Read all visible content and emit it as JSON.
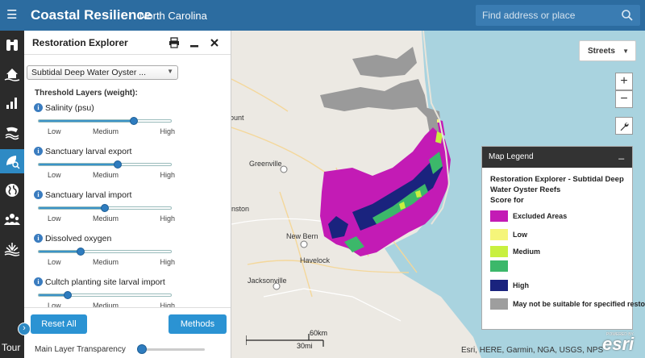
{
  "header": {
    "menu_icon": "☰",
    "title": "Coastal Resilience",
    "subtitle": "North Carolina",
    "search_placeholder": "Find address or place"
  },
  "rail": {
    "tour_label": "Tour",
    "collapse_icon": "›",
    "items": [
      {
        "icon": "binoculars-icon"
      },
      {
        "icon": "flood-house-icon"
      },
      {
        "icon": "bar-chart-icon"
      },
      {
        "icon": "storm-coast-icon"
      },
      {
        "icon": "restoration-leaf-icon",
        "active": true
      },
      {
        "icon": "globe-icon"
      },
      {
        "icon": "community-icon"
      },
      {
        "icon": "wetland-icon"
      }
    ]
  },
  "panel": {
    "title": "Restoration Explorer",
    "layer_select": "Subtidal Deep Water Oyster ...",
    "threshold_title": "Threshold Layers (weight):",
    "sliders": [
      {
        "label": "Salinity (psu)",
        "value": 0.72,
        "low": "Low",
        "medium": "Medium",
        "high": "High"
      },
      {
        "label": "Sanctuary larval export",
        "value": 0.6,
        "low": "Low",
        "medium": "Medium",
        "high": "High"
      },
      {
        "label": "Sanctuary larval import",
        "value": 0.5,
        "low": "Low",
        "medium": "Medium",
        "high": "High"
      },
      {
        "label": "Dissolved oxygen",
        "value": 0.32,
        "low": "Low",
        "medium": "Medium",
        "high": "High"
      },
      {
        "label": "Cultch planting site larval import",
        "value": 0.22,
        "low": "Low",
        "medium": "Medium",
        "high": "High"
      }
    ],
    "reset_label": "Reset All",
    "methods_label": "Methods",
    "transparency_label": "Main Layer Transparency",
    "transparency_value": 0.02
  },
  "map": {
    "basemap_label": "Streets",
    "zoom_in": "+",
    "zoom_out": "−",
    "place_labels": [
      "ount",
      "Greenville",
      "inston",
      "New Bern",
      "Havelock",
      "Jacksonville"
    ],
    "scale_km": "60km",
    "scale_mi": "30mi",
    "attribution": "Esri, HERE, Garmin, NGA, USGS, NPS",
    "logo_text": "esri",
    "logo_powered": "POWERED BY"
  },
  "legend": {
    "header": "Map Legend",
    "minimize": "_",
    "layer_title": "Restoration Explorer - Subtidal Deep Water Oyster Reefs",
    "score_for": "Score for",
    "items": [
      {
        "label": "Excluded Areas",
        "color": "#c31bb5"
      },
      {
        "label": "Low",
        "color": "#f5f57a"
      },
      {
        "label": "Medium",
        "color": "#c8f040"
      },
      {
        "label": "",
        "color": "#3cb86a"
      },
      {
        "label": "High",
        "color": "#1a237e"
      },
      {
        "label": "May not be suitable for specified restoration",
        "color": "#9e9e9e"
      }
    ]
  }
}
